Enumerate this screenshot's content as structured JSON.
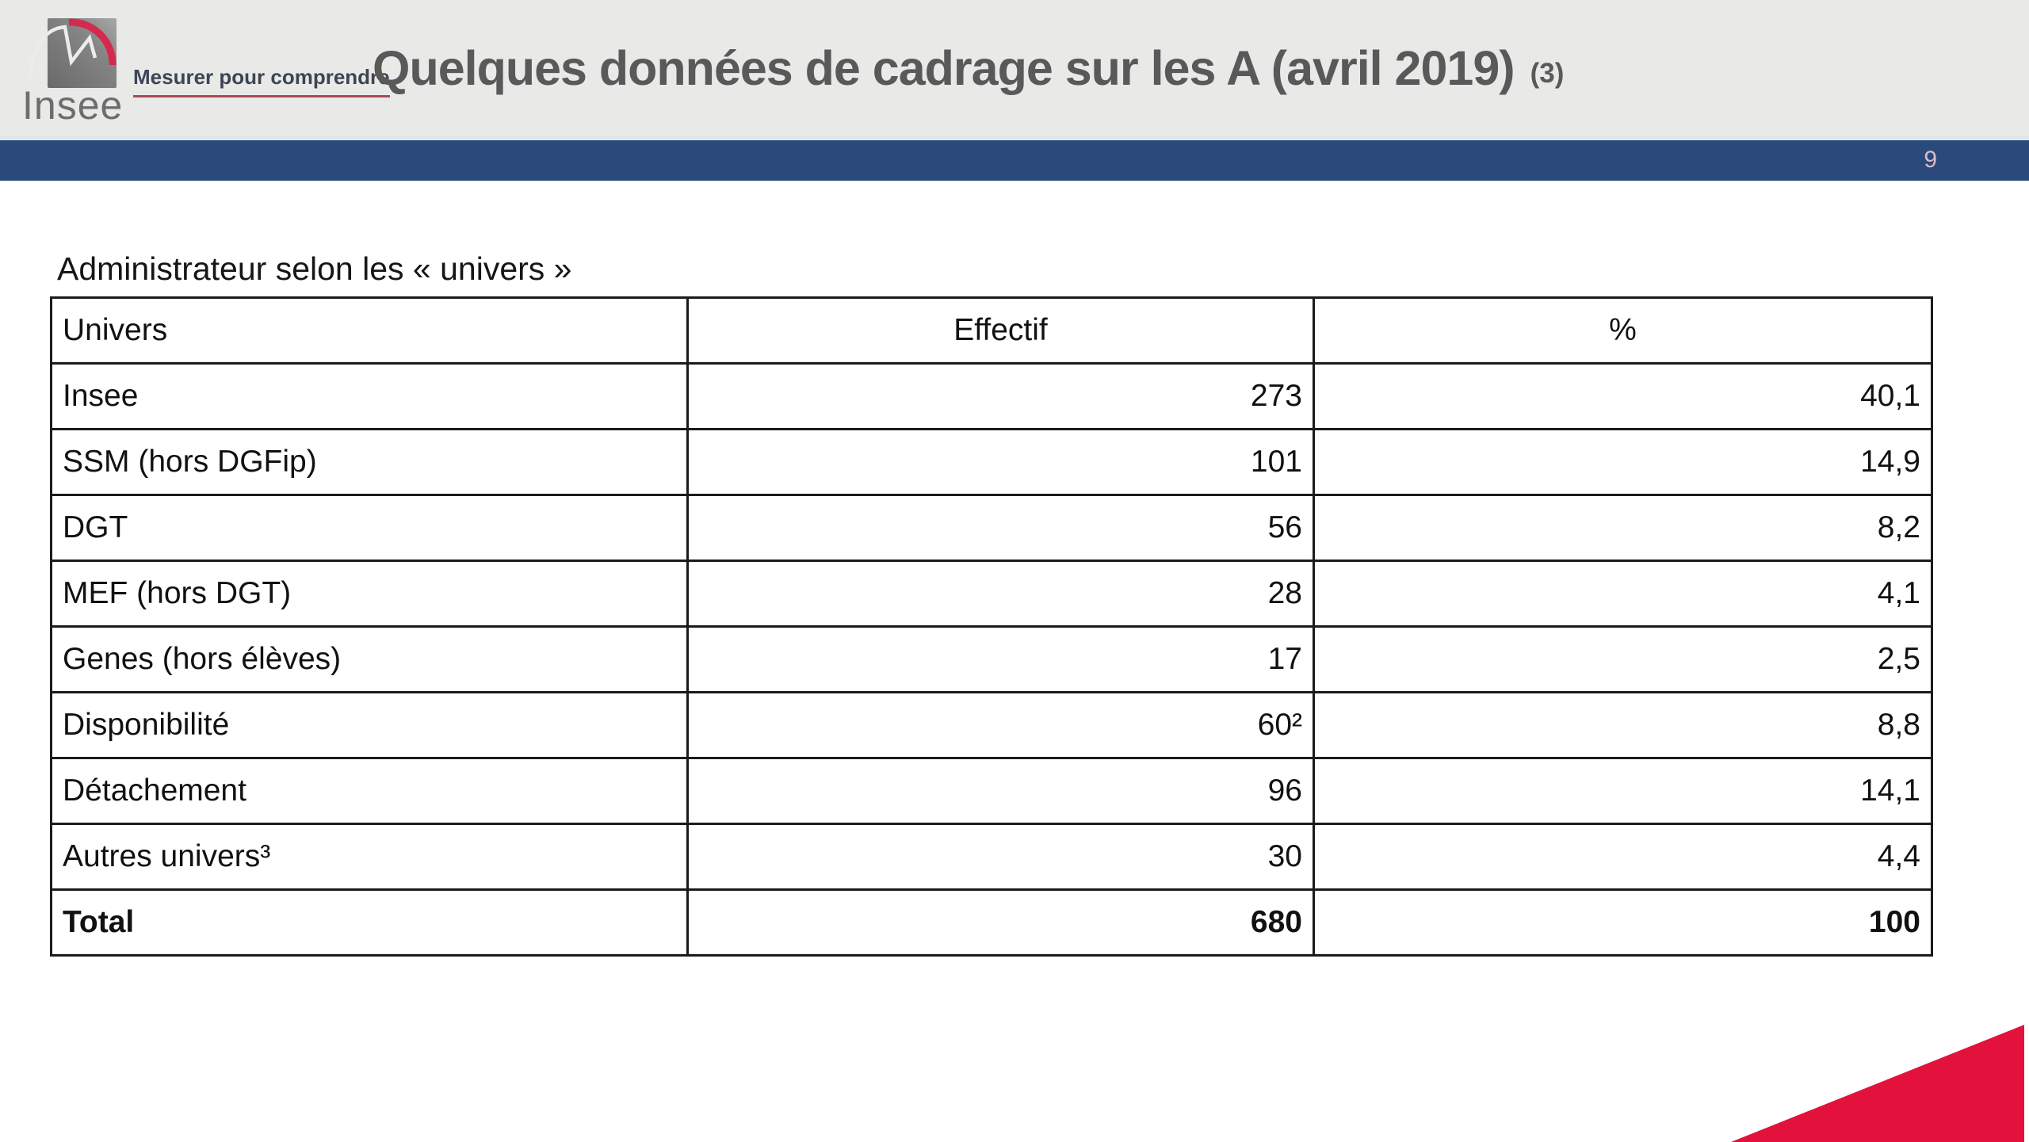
{
  "header": {
    "logo_text": "Insee",
    "tagline": "Mesurer pour comprendre",
    "title": "Quelques données de cadrage sur les A (avril 2019)",
    "title_suffix": "(3)",
    "page_number": "9"
  },
  "colors": {
    "header_bg": "#e9e9e7",
    "divider_blue": "#2a4a7b",
    "accent_red": "#e2123d",
    "logo_red": "#d42a4e",
    "tagline_underline_red": "#a84b59",
    "title_gray": "#595959",
    "page_number_pink": "#ddbac9"
  },
  "table": {
    "caption": "Administrateur selon les « univers »",
    "columns": [
      "Univers",
      "Effectif",
      "%"
    ],
    "rows": [
      {
        "univers": "Insee",
        "effectif": "273",
        "pct": "40,1",
        "bold": false
      },
      {
        "univers": "SSM (hors DGFip)",
        "effectif": "101",
        "pct": "14,9",
        "bold": false
      },
      {
        "univers": "DGT",
        "effectif": "56",
        "pct": "8,2",
        "bold": false
      },
      {
        "univers": "MEF (hors DGT)",
        "effectif": "28",
        "pct": "4,1",
        "bold": false
      },
      {
        "univers": "Genes (hors élèves)",
        "effectif": "17",
        "pct": "2,5",
        "bold": false
      },
      {
        "univers": "Disponibilité",
        "effectif": "60²",
        "pct": "8,8",
        "bold": false
      },
      {
        "univers": "Détachement",
        "effectif": "96",
        "pct": "14,1",
        "bold": false
      },
      {
        "univers": "Autres univers³",
        "effectif": "30",
        "pct": "4,4",
        "bold": false
      },
      {
        "univers": "Total",
        "effectif": "680",
        "pct": "100",
        "bold": true
      }
    ]
  },
  "chart_data": {
    "type": "table",
    "title": "Administrateur selon les « univers »",
    "columns": [
      "Univers",
      "Effectif",
      "%"
    ],
    "rows": [
      [
        "Insee",
        273,
        40.1
      ],
      [
        "SSM (hors DGFip)",
        101,
        14.9
      ],
      [
        "DGT",
        56,
        8.2
      ],
      [
        "MEF (hors DGT)",
        28,
        4.1
      ],
      [
        "Genes (hors élèves)",
        17,
        2.5
      ],
      [
        "Disponibilité",
        60,
        8.8
      ],
      [
        "Détachement",
        96,
        14.1
      ],
      [
        "Autres univers",
        30,
        4.4
      ],
      [
        "Total",
        680,
        100
      ]
    ]
  }
}
